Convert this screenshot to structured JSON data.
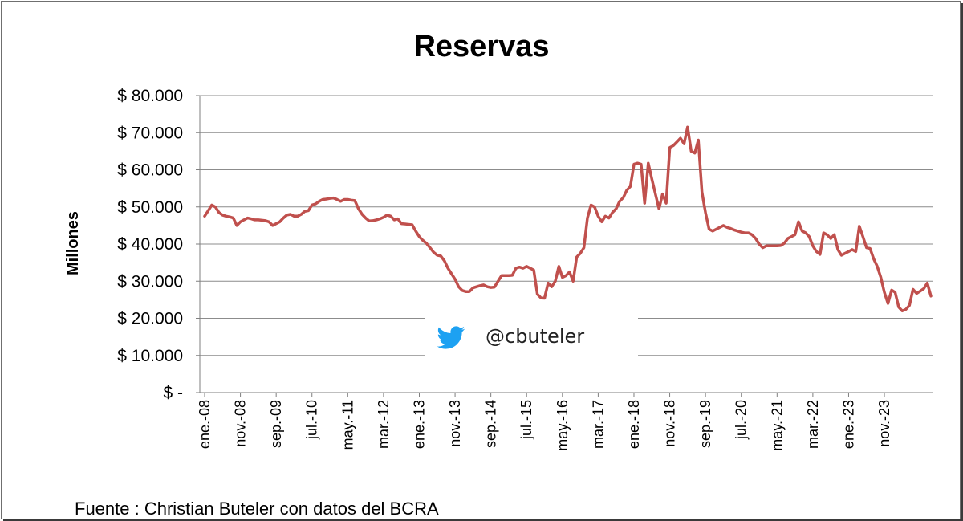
{
  "chart_data": {
    "type": "line",
    "title": "Reservas",
    "ylabel": "Millones",
    "xlabel": "",
    "ylim": [
      0,
      80000
    ],
    "yticks": [
      0,
      10000,
      20000,
      30000,
      40000,
      50000,
      60000,
      70000,
      80000
    ],
    "ytick_labels": [
      "$ -",
      "$ 10.000",
      "$ 20.000",
      "$ 30.000",
      "$ 40.000",
      "$ 50.000",
      "$ 60.000",
      "$ 70.000",
      "$ 80.000"
    ],
    "xtick_labels": [
      "ene.-08",
      "nov.-08",
      "sep.-09",
      "jul.-10",
      "may.-11",
      "mar.-12",
      "ene.-13",
      "nov.-13",
      "sep.-14",
      "jul.-15",
      "may.-16",
      "mar.-17",
      "ene.-18",
      "nov.-18",
      "sep.-19",
      "jul.-20",
      "may.-21",
      "mar.-22",
      "ene.-23",
      "nov.-23"
    ],
    "grid": true,
    "line_color": "#c0504d",
    "series": [
      {
        "name": "",
        "x_start": "ene.-08",
        "frequency": "monthly",
        "values": [
          47500,
          49000,
          50500,
          50000,
          48500,
          47800,
          47500,
          47300,
          47000,
          45000,
          46000,
          46500,
          47000,
          46800,
          46500,
          46500,
          46400,
          46300,
          46000,
          45000,
          45500,
          46000,
          47000,
          47800,
          48000,
          47500,
          47500,
          48000,
          48800,
          49000,
          50500,
          50800,
          51500,
          52000,
          52100,
          52300,
          52400,
          52000,
          51500,
          52000,
          52000,
          51800,
          51700,
          49500,
          48000,
          47000,
          46200,
          46300,
          46500,
          46800,
          47200,
          47800,
          47500,
          46500,
          46800,
          45500,
          45400,
          45300,
          45200,
          43500,
          42000,
          41000,
          40200,
          39000,
          37800,
          37000,
          36800,
          35500,
          33500,
          32000,
          30500,
          28500,
          27500,
          27200,
          27200,
          28200,
          28500,
          28800,
          29000,
          28500,
          28300,
          28400,
          30000,
          31500,
          31500,
          31500,
          31600,
          33500,
          33800,
          33500,
          34000,
          33500,
          33000,
          26500,
          25500,
          25400,
          29500,
          28500,
          30000,
          34000,
          31000,
          31500,
          32500,
          30000,
          36500,
          37500,
          39000,
          47000,
          50500,
          50000,
          47500,
          46000,
          47500,
          47000,
          48500,
          49500,
          51500,
          52500,
          54500,
          55500,
          61500,
          61800,
          61500,
          51000,
          61800,
          57500,
          53500,
          49500,
          53500,
          51000,
          66000,
          66500,
          67500,
          68500,
          67000,
          71500,
          65000,
          64500,
          68000,
          54000,
          48500,
          44000,
          43500,
          44000,
          44500,
          45000,
          44500,
          44200,
          43800,
          43500,
          43200,
          43000,
          43000,
          42500,
          41500,
          40000,
          39000,
          39500,
          39500,
          39500,
          39500,
          39600,
          40200,
          41500,
          42000,
          42500,
          46000,
          43500,
          43000,
          42000,
          39500,
          38000,
          37200,
          43000,
          42500,
          41500,
          42500,
          38500,
          37000,
          37500,
          38000,
          38500,
          38000,
          44800,
          42000,
          39000,
          38800,
          36000,
          34000,
          31000,
          27000,
          24000,
          27600,
          27000,
          23000,
          22000,
          22400,
          23500,
          27800,
          26700,
          27300,
          28000,
          29500,
          26000
        ]
      }
    ],
    "annotations": {
      "twitter_handle": "@cbuteler",
      "source": "Fuente : Christian Buteler con datos del BCRA"
    }
  }
}
